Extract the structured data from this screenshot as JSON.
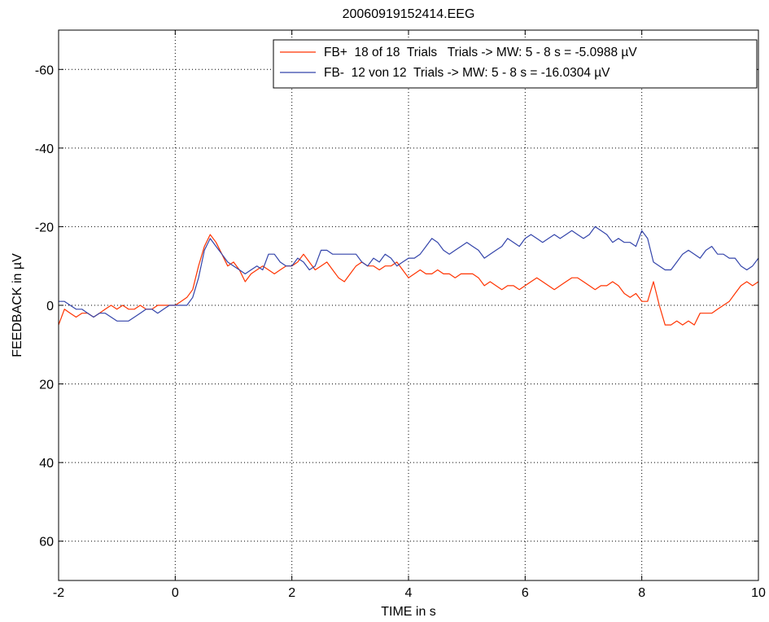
{
  "chart_data": {
    "type": "line",
    "title": "20060919152414.EEG",
    "xlabel": "TIME in s",
    "ylabel": "FEEDBACK in µV",
    "xlim": [
      -2,
      10
    ],
    "ylim": [
      -70,
      70
    ],
    "y_reversed": true,
    "grid": true,
    "legend_position": "top-right",
    "x_ticks": [
      -2,
      0,
      2,
      4,
      6,
      8,
      10
    ],
    "x_tick_labels": [
      "-2",
      "0",
      "2",
      "4",
      "6",
      "8",
      "10"
    ],
    "y_ticks": [
      -60,
      -40,
      -20,
      0,
      20,
      40,
      60
    ],
    "y_tick_labels": [
      "-60",
      "-40",
      "-20",
      "0",
      "20",
      "40",
      "60"
    ],
    "series": [
      {
        "name": "FB+  18 of 18  Trials   Trials -> MW: 5 - 8 s = -5.0988 µV",
        "color": "#ff3300",
        "x": [
          -2.0,
          -1.9,
          -1.8,
          -1.7,
          -1.6,
          -1.5,
          -1.4,
          -1.3,
          -1.2,
          -1.1,
          -1.0,
          -0.9,
          -0.8,
          -0.7,
          -0.6,
          -0.5,
          -0.4,
          -0.3,
          -0.2,
          -0.1,
          0.0,
          0.1,
          0.2,
          0.3,
          0.4,
          0.5,
          0.6,
          0.7,
          0.8,
          0.9,
          1.0,
          1.1,
          1.2,
          1.3,
          1.4,
          1.5,
          1.6,
          1.7,
          1.8,
          1.9,
          2.0,
          2.1,
          2.2,
          2.3,
          2.4,
          2.5,
          2.6,
          2.7,
          2.8,
          2.9,
          3.0,
          3.1,
          3.2,
          3.3,
          3.4,
          3.5,
          3.6,
          3.7,
          3.8,
          3.9,
          4.0,
          4.1,
          4.2,
          4.3,
          4.4,
          4.5,
          4.6,
          4.7,
          4.8,
          4.9,
          5.0,
          5.1,
          5.2,
          5.3,
          5.4,
          5.5,
          5.6,
          5.7,
          5.8,
          5.9,
          6.0,
          6.1,
          6.2,
          6.3,
          6.4,
          6.5,
          6.6,
          6.7,
          6.8,
          6.9,
          7.0,
          7.1,
          7.2,
          7.3,
          7.4,
          7.5,
          7.6,
          7.7,
          7.8,
          7.9,
          8.0,
          8.1,
          8.2,
          8.3,
          8.4,
          8.5,
          8.6,
          8.7,
          8.8,
          8.9,
          9.0,
          9.1,
          9.2,
          9.3,
          9.4,
          9.5,
          9.6,
          9.7,
          9.8,
          9.9,
          10.0
        ],
        "y": [
          5,
          1,
          2,
          3,
          2,
          2,
          3,
          2,
          1,
          0,
          1,
          0,
          1,
          1,
          0,
          1,
          1,
          0,
          0,
          0,
          0,
          -1,
          -2,
          -4,
          -10,
          -15,
          -18,
          -16,
          -13,
          -10,
          -11,
          -9,
          -6,
          -8,
          -9,
          -10,
          -9,
          -8,
          -9,
          -10,
          -10,
          -11,
          -13,
          -11,
          -9,
          -10,
          -11,
          -9,
          -7,
          -6,
          -8,
          -10,
          -11,
          -10,
          -10,
          -9,
          -10,
          -10,
          -11,
          -9,
          -7,
          -8,
          -9,
          -8,
          -8,
          -9,
          -8,
          -8,
          -7,
          -8,
          -8,
          -8,
          -7,
          -5,
          -6,
          -5,
          -4,
          -5,
          -5,
          -4,
          -5,
          -6,
          -7,
          -6,
          -5,
          -4,
          -5,
          -6,
          -7,
          -7,
          -6,
          -5,
          -4,
          -5,
          -5,
          -6,
          -5,
          -3,
          -2,
          -3,
          -1,
          -1,
          -6,
          0,
          5,
          5,
          4,
          5,
          4,
          5,
          2,
          2,
          2,
          1,
          0,
          -1,
          -3,
          -5,
          -6,
          -5,
          -6
        ]
      },
      {
        "name": "FB-  12 von 12  Trials -> MW: 5 - 8 s = -16.0304 µV",
        "color": "#3344aa",
        "x": [
          -2.0,
          -1.9,
          -1.8,
          -1.7,
          -1.6,
          -1.5,
          -1.4,
          -1.3,
          -1.2,
          -1.1,
          -1.0,
          -0.9,
          -0.8,
          -0.7,
          -0.6,
          -0.5,
          -0.4,
          -0.3,
          -0.2,
          -0.1,
          0.0,
          0.1,
          0.2,
          0.3,
          0.4,
          0.5,
          0.6,
          0.7,
          0.8,
          0.9,
          1.0,
          1.1,
          1.2,
          1.3,
          1.4,
          1.5,
          1.6,
          1.7,
          1.8,
          1.9,
          2.0,
          2.1,
          2.2,
          2.3,
          2.4,
          2.5,
          2.6,
          2.7,
          2.8,
          2.9,
          3.0,
          3.1,
          3.2,
          3.3,
          3.4,
          3.5,
          3.6,
          3.7,
          3.8,
          3.9,
          4.0,
          4.1,
          4.2,
          4.3,
          4.4,
          4.5,
          4.6,
          4.7,
          4.8,
          4.9,
          5.0,
          5.1,
          5.2,
          5.3,
          5.4,
          5.5,
          5.6,
          5.7,
          5.8,
          5.9,
          6.0,
          6.1,
          6.2,
          6.3,
          6.4,
          6.5,
          6.6,
          6.7,
          6.8,
          6.9,
          7.0,
          7.1,
          7.2,
          7.3,
          7.4,
          7.5,
          7.6,
          7.7,
          7.8,
          7.9,
          8.0,
          8.1,
          8.2,
          8.3,
          8.4,
          8.5,
          8.6,
          8.7,
          8.8,
          8.9,
          9.0,
          9.1,
          9.2,
          9.3,
          9.4,
          9.5,
          9.6,
          9.7,
          9.8,
          9.9,
          10.0
        ],
        "y": [
          -1,
          -1,
          0,
          1,
          1,
          2,
          3,
          2,
          2,
          3,
          4,
          4,
          4,
          3,
          2,
          1,
          1,
          2,
          1,
          0,
          0,
          0,
          0,
          -2,
          -7,
          -14,
          -17,
          -15,
          -13,
          -11,
          -10,
          -9,
          -8,
          -9,
          -10,
          -9,
          -13,
          -13,
          -11,
          -10,
          -10,
          -12,
          -11,
          -9,
          -10,
          -14,
          -14,
          -13,
          -13,
          -13,
          -13,
          -13,
          -11,
          -10,
          -12,
          -11,
          -13,
          -12,
          -10,
          -11,
          -12,
          -12,
          -13,
          -15,
          -17,
          -16,
          -14,
          -13,
          -14,
          -15,
          -16,
          -15,
          -14,
          -12,
          -13,
          -14,
          -15,
          -17,
          -16,
          -15,
          -17,
          -18,
          -17,
          -16,
          -17,
          -18,
          -17,
          -18,
          -19,
          -18,
          -17,
          -18,
          -20,
          -19,
          -18,
          -16,
          -17,
          -16,
          -16,
          -15,
          -19,
          -17,
          -11,
          -10,
          -9,
          -9,
          -11,
          -13,
          -14,
          -13,
          -12,
          -14,
          -15,
          -13,
          -13,
          -12,
          -12,
          -10,
          -9,
          -10,
          -12
        ]
      }
    ]
  }
}
